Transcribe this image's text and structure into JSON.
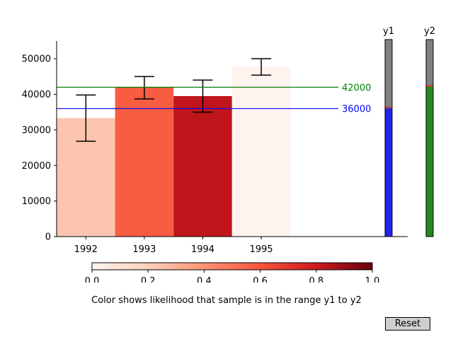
{
  "chart_data": {
    "type": "bar",
    "categories": [
      "1992",
      "1993",
      "1994",
      "1995"
    ],
    "values": [
      33300,
      42000,
      39500,
      47800
    ],
    "error_low": [
      26800,
      38700,
      35000,
      45400
    ],
    "error_high": [
      39800,
      45000,
      44000,
      50000
    ],
    "bar_colors": [
      "#fcc5b0",
      "#f85d42",
      "#bf151b",
      "#fff3ef"
    ],
    "ylim": [
      0,
      55000
    ],
    "yticks": [
      0,
      10000,
      20000,
      30000,
      40000,
      50000
    ],
    "ytick_labels": [
      "0",
      "10000",
      "20000",
      "30000",
      "40000",
      "50000"
    ],
    "reference_lines": [
      {
        "value": 42000,
        "label": "42000",
        "color": "#008000"
      },
      {
        "value": 36000,
        "label": "36000",
        "color": "#0000ff"
      }
    ]
  },
  "sliders": [
    {
      "label": "y1",
      "value": 36000,
      "fill_color": "#2222ee"
    },
    {
      "label": "y2",
      "value": 42000,
      "fill_color": "#228822"
    }
  ],
  "slider_track_color": "#808080",
  "colorbar": {
    "ticks": [
      "0.0",
      "0.2",
      "0.4",
      "0.6",
      "0.8",
      "1.0"
    ],
    "label": "Color shows likelihood that sample is in the range y1 to y2",
    "colors": [
      "#fff5f0",
      "#fdd0bb",
      "#fc9373",
      "#f6553d",
      "#cd1a1e",
      "#67000d"
    ]
  },
  "reset_label": "Reset"
}
